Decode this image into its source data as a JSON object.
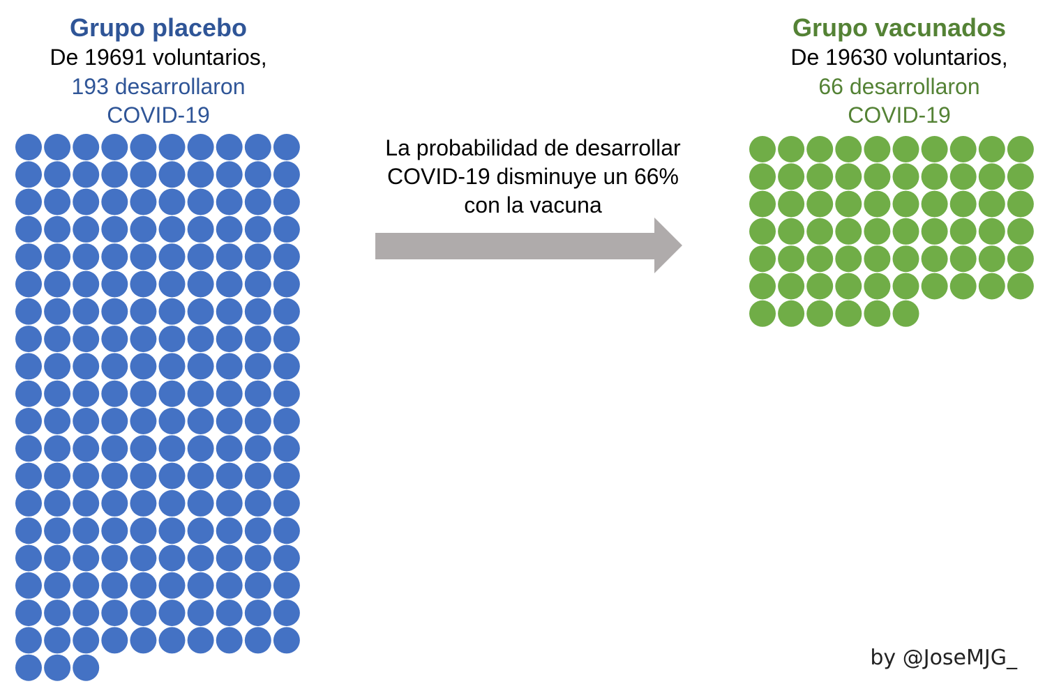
{
  "colors": {
    "placebo": "#4472C4",
    "placebo_title": "#2F5597",
    "vaccinated": "#70AD47",
    "vaccinated_title": "#548235",
    "arrow": "#AFABAB"
  },
  "placebo": {
    "title": "Grupo placebo",
    "line1": "De 19691 voluntarios,",
    "line2": "193 desarrollaron",
    "line3": "COVID-19"
  },
  "vaccinated": {
    "title": "Grupo vacunados",
    "line1": "De 19630 voluntarios,",
    "line2": "66 desarrollaron",
    "line3": "COVID-19"
  },
  "center": {
    "line1": "La probabilidad de desarrollar",
    "line2": "COVID-19 disminuye un 66%",
    "line3": "con la vacuna"
  },
  "credit": "by @JoseMJG_",
  "chart_data": [
    {
      "type": "waffle",
      "series": "Grupo placebo",
      "value": 193,
      "total_volunteers": 19691,
      "columns": 10,
      "color": "#4472C4"
    },
    {
      "type": "waffle",
      "series": "Grupo vacunados",
      "value": 66,
      "total_volunteers": 19630,
      "columns": 10,
      "color": "#70AD47"
    }
  ]
}
